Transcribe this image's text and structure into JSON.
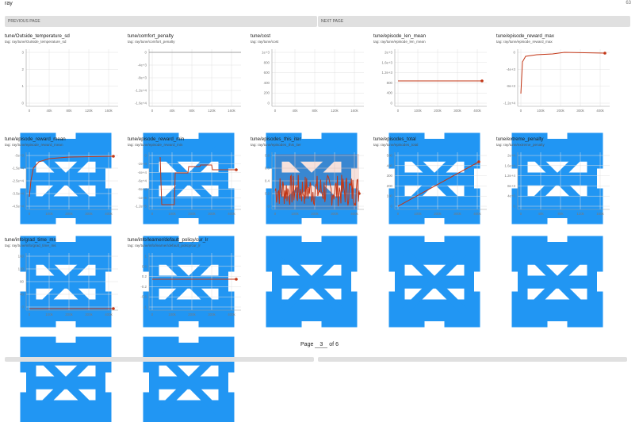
{
  "header": {
    "run": "ray",
    "count": "63"
  },
  "pagers": {
    "prev": "PREVIOUS PAGE",
    "next": "NEXT PAGE"
  },
  "footer": {
    "page_label": "Page",
    "page_num": "3",
    "of_label": "of 6"
  },
  "colors": {
    "series": "#c23616",
    "axis": "#9e9e9e",
    "grid": "#e0e0e0",
    "icon": "#2196f3"
  },
  "icons": [
    "fullscreen-icon",
    "list-icon",
    "fit-domain-icon"
  ],
  "cards": [
    {
      "title": "tune/Outside_temperature_sd",
      "tag": "tag: ray/tune/Outside_temperature_sd",
      "xt": [
        "0",
        "40k",
        "80k",
        "120k",
        "160k"
      ],
      "yt": [
        "3",
        "2",
        "1",
        "0"
      ],
      "kind": "empty"
    },
    {
      "title": "tune/comfort_penalty",
      "tag": "tag: ray/tune/comfort_penalty",
      "xt": [
        "0",
        "40k",
        "80k",
        "120k",
        "160k"
      ],
      "yt": [
        "0",
        "-4e+3",
        "-8e+3",
        "-1.2e+4",
        "-1.6e+4"
      ],
      "kind": "flatline"
    },
    {
      "title": "tune/cost",
      "tag": "tag: ray/tune/cost",
      "xt": [
        "0",
        "40k",
        "80k",
        "120k",
        "160k"
      ],
      "yt": [
        "1e+3",
        "800",
        "600",
        "400",
        "200",
        "0"
      ],
      "kind": "empty"
    },
    {
      "title": "tune/episode_len_mean",
      "tag": "tag: ray/tune/episode_len_mean",
      "xt": [
        "0",
        "100k",
        "200k",
        "300k",
        "400k"
      ],
      "yt": [
        "2e+3",
        "1.6e+3",
        "1.2e+3",
        "800",
        "400",
        "0"
      ],
      "kind": "len"
    },
    {
      "title": "tune/episode_reward_max",
      "tag": "tag: ray/tune/episode_reward_max",
      "xt": [
        "0",
        "100k",
        "200k",
        "300k",
        "400k"
      ],
      "yt": [
        "0",
        "-4e+3",
        "-8e+3",
        "-1.2e+4"
      ],
      "kind": "rmax"
    },
    {
      "title": "tune/episode_reward_mean",
      "tag": "tag: ray/tune/episode_reward_mean",
      "xt": [
        "0",
        "100k",
        "200k",
        "300k",
        "400k"
      ],
      "yt": [
        "-5e+3",
        "-1.5e+4",
        "-2.5e+4",
        "-3.5e+4",
        "-4.5e+4"
      ],
      "kind": "rmean"
    },
    {
      "title": "tune/episode_reward_min",
      "tag": "tag: ray/tune/episode_reward_min",
      "xt": [
        "0",
        "100k",
        "200k",
        "300k",
        "400k"
      ],
      "yt": [
        "0",
        "-2e+4",
        "-4e+4",
        "-6e+4",
        "-8e+4",
        "-1e+5",
        "-1.2e+5"
      ],
      "kind": "rmin"
    },
    {
      "title": "tune/episodes_this_iter",
      "tag": "tag: ray/tune/episodes_this_iter",
      "xt": [
        "0",
        "100k",
        "200k",
        "300k",
        "400k"
      ],
      "yt": [
        "0.8",
        "0.6",
        "0.4",
        "0.2",
        "0"
      ],
      "kind": "noise"
    },
    {
      "title": "tune/episodes_total",
      "tag": "tag: ray/tune/episodes_total",
      "xt": [
        "0",
        "100k",
        "200k",
        "300k",
        "400k"
      ],
      "yt": [
        "500",
        "400",
        "300",
        "200",
        "100",
        "0"
      ],
      "kind": "linear"
    },
    {
      "title": "tune/extreme_penalty",
      "tag": "tag: ray/tune/extreme_penalty",
      "xt": [
        "0",
        "40k",
        "80k",
        "120k",
        "160k"
      ],
      "yt": [
        "2e+4",
        "1.6e+4",
        "1.2e+4",
        "8e+3",
        "4e+3",
        "0"
      ],
      "kind": "empty"
    },
    {
      "title": "tune/info/grad_time_ms",
      "tag": "tag: ray/tune/info/grad_time_ms",
      "xt": [
        "0",
        "100k",
        "200k",
        "300k",
        "400k"
      ],
      "yt": [
        "160",
        "120",
        "80",
        "40",
        "0"
      ],
      "kind": "grad"
    },
    {
      "title": "tune/info/learner/default_policy/cur_lr",
      "tag": "tag: ray/tune/info/learner/default_policy/cur_lr",
      "xt": [
        "0",
        "100k",
        "200k",
        "300k",
        "400k"
      ],
      "yt": [
        "1",
        "0.6",
        "0.2",
        "-0.2",
        "-0.6",
        "-1"
      ],
      "kind": "lr"
    }
  ]
}
